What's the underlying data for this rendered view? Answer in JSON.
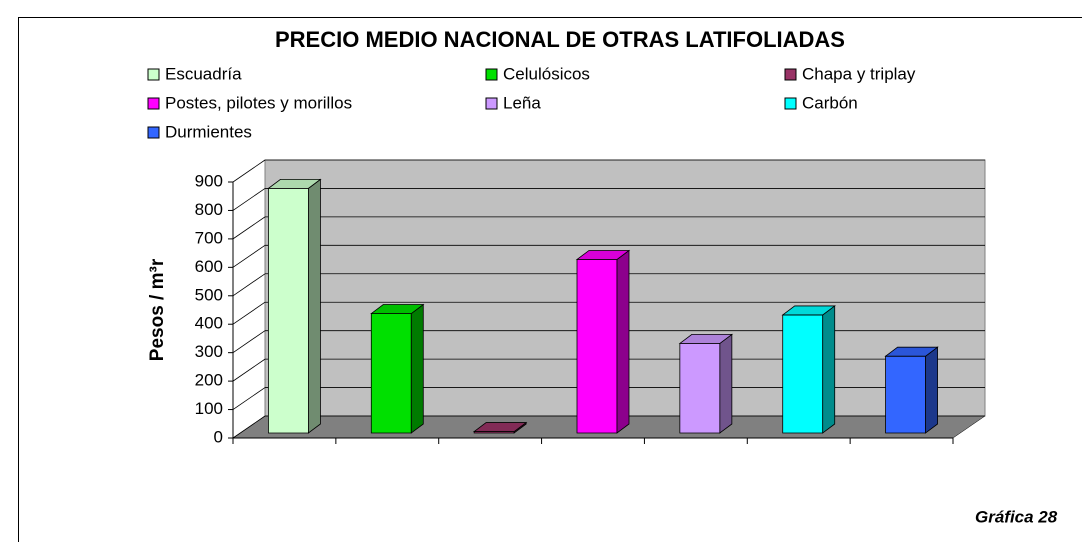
{
  "chart_data": {
    "type": "bar3d",
    "title": "PRECIO MEDIO NACIONAL DE OTRAS LATIFOLIADAS",
    "y_label": "Pesos / m³r",
    "categories": [
      "Escuadría",
      "Celulósicos",
      "Chapa y triplay",
      "Postes, pilotes y morillos",
      "Leña",
      "Carbón",
      "Durmientes"
    ],
    "values": [
      860,
      420,
      5,
      610,
      315,
      415,
      270
    ],
    "colors": [
      "#ccffcc",
      "#00e000",
      "#993366",
      "#ff00ff",
      "#cc99ff",
      "#00ffff",
      "#3366ff"
    ],
    "ylim": [
      0,
      900
    ],
    "yticks": [
      0,
      100,
      200,
      300,
      400,
      500,
      600,
      700,
      800,
      900
    ],
    "grid": true,
    "annotation": "Gráfica 28"
  }
}
